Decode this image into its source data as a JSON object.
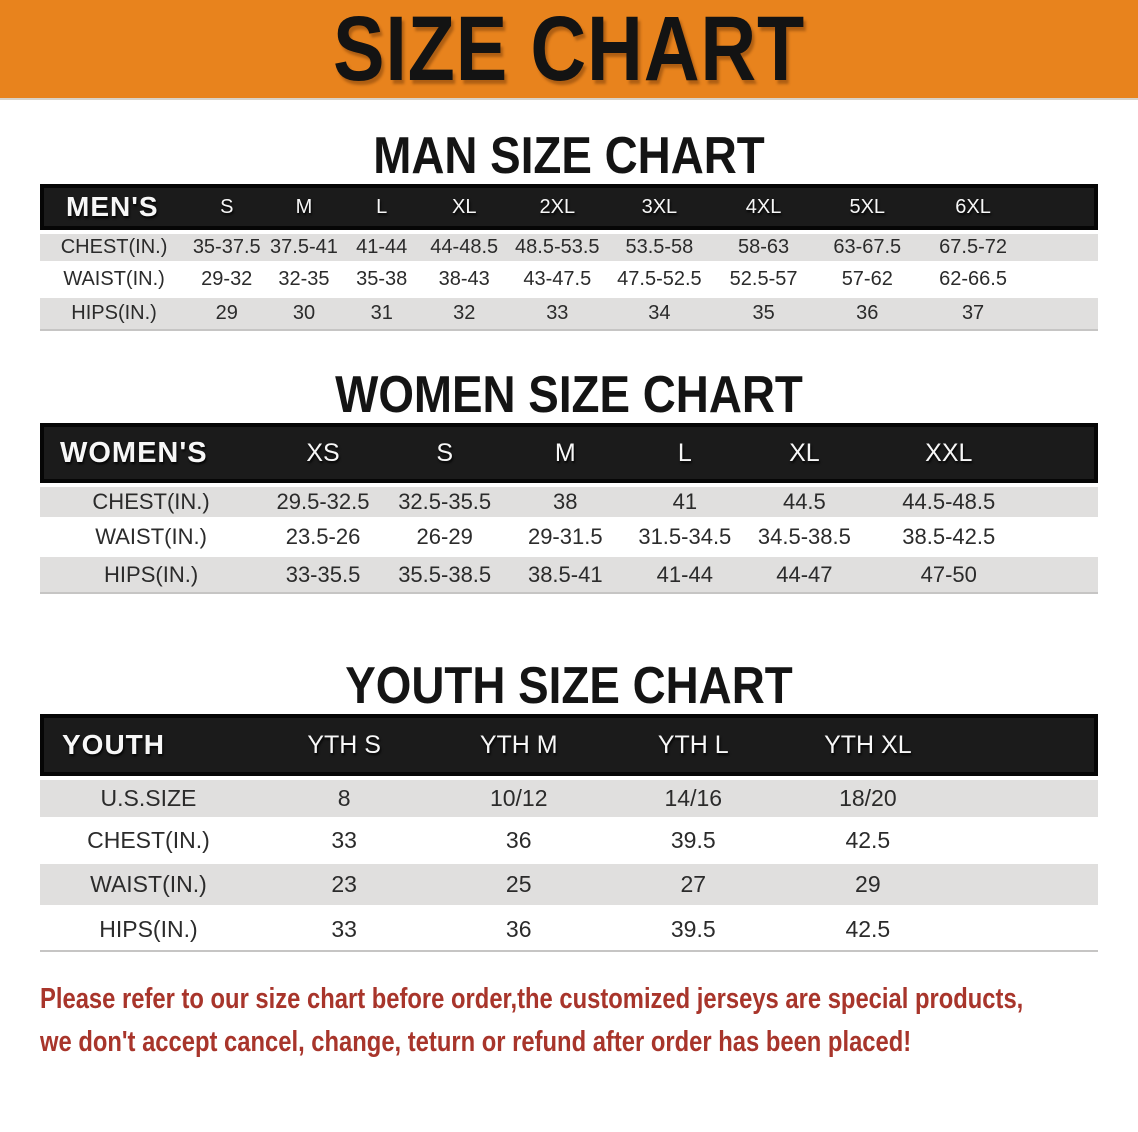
{
  "colors": {
    "banner_bg": "#E8831D",
    "table_header_bg": "#1B1B1B",
    "shaded_row_bg": "#E0DFDE",
    "footer_text": "#A8352B"
  },
  "banner": {
    "title": "SIZE CHART"
  },
  "sections": [
    {
      "id": "men",
      "heading": "MAN SIZE CHART",
      "table": {
        "label": "MEN'S",
        "sizes": [
          "S",
          "M",
          "L",
          "XL",
          "2XL",
          "3XL",
          "4XL",
          "5XL",
          "6XL"
        ],
        "rows": [
          {
            "label": "CHEST(IN.)",
            "values": [
              "35-37.5",
              "37.5-41",
              "41-44",
              "44-48.5",
              "48.5-53.5",
              "53.5-58",
              "58-63",
              "63-67.5",
              "67.5-72"
            ]
          },
          {
            "label": "WAIST(IN.)",
            "values": [
              "29-32",
              "32-35",
              "35-38",
              "38-43",
              "43-47.5",
              "47.5-52.5",
              "52.5-57",
              "57-62",
              "62-66.5"
            ]
          },
          {
            "label": "HIPS(IN.)",
            "values": [
              "29",
              "30",
              "31",
              "32",
              "33",
              "34",
              "35",
              "36",
              "37"
            ]
          }
        ]
      }
    },
    {
      "id": "women",
      "heading": "WOMEN SIZE CHART",
      "table": {
        "label": "WOMEN'S",
        "sizes": [
          "XS",
          "S",
          "M",
          "L",
          "XL",
          "XXL"
        ],
        "rows": [
          {
            "label": "CHEST(IN.)",
            "values": [
              "29.5-32.5",
              "32.5-35.5",
              "38",
              "41",
              "44.5",
              "44.5-48.5"
            ]
          },
          {
            "label": "WAIST(IN.)",
            "values": [
              "23.5-26",
              "26-29",
              "29-31.5",
              "31.5-34.5",
              "34.5-38.5",
              "38.5-42.5"
            ]
          },
          {
            "label": "HIPS(IN.)",
            "values": [
              "33-35.5",
              "35.5-38.5",
              "38.5-41",
              "41-44",
              "44-47",
              "47-50"
            ]
          }
        ]
      }
    },
    {
      "id": "youth",
      "heading": "YOUTH SIZE CHART",
      "table": {
        "label": "YOUTH",
        "sizes": [
          "YTH S",
          "YTH M",
          "YTH L",
          "YTH XL"
        ],
        "rows": [
          {
            "label": "U.S.SIZE",
            "values": [
              "8",
              "10/12",
              "14/16",
              "18/20"
            ]
          },
          {
            "label": "CHEST(IN.)",
            "values": [
              "33",
              "36",
              "39.5",
              "42.5"
            ]
          },
          {
            "label": "WAIST(IN.)",
            "values": [
              "23",
              "25",
              "27",
              "29"
            ]
          },
          {
            "label": "HIPS(IN.)",
            "values": [
              "33",
              "36",
              "39.5",
              "42.5"
            ]
          }
        ]
      }
    }
  ],
  "footer": {
    "lines": [
      "Please refer to our size chart before order,the customized jerseys are special products,",
      "we don't accept cancel, change, teturn or refund after order has been placed!"
    ]
  }
}
